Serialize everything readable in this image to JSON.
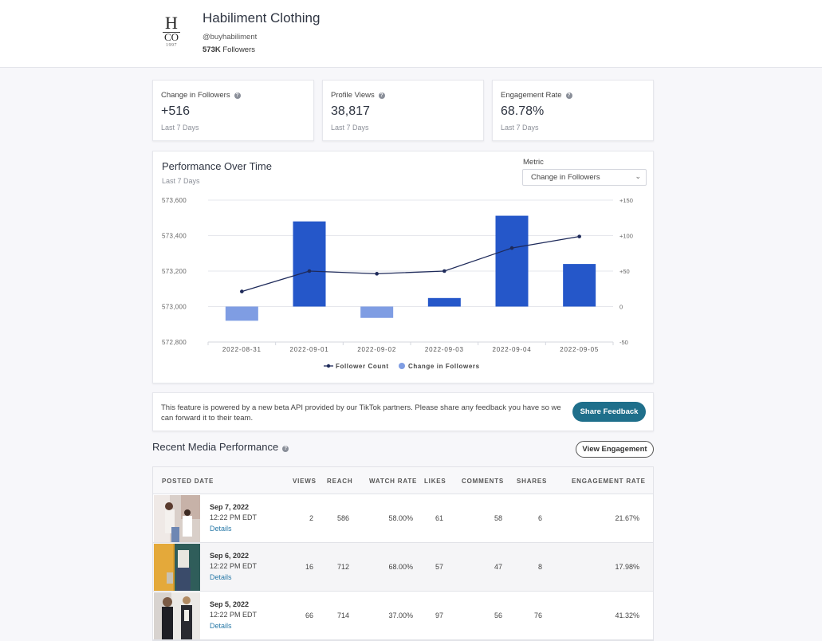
{
  "profile": {
    "logo": {
      "line1": "H",
      "line2": "CO",
      "line3": "1997"
    },
    "name": "Habiliment Clothing",
    "handle": "@buyhabiliment",
    "followers_count": "573K",
    "followers_label": "Followers"
  },
  "stats": [
    {
      "title": "Change in Followers",
      "value": "+516",
      "period": "Last 7 Days"
    },
    {
      "title": "Profile Views",
      "value": "38,817",
      "period": "Last 7 Days"
    },
    {
      "title": "Engagement Rate",
      "value": "68.78%",
      "period": "Last 7 Days"
    }
  ],
  "performance": {
    "title": "Performance Over Time",
    "period": "Last 7 Days",
    "metric_label": "Metric",
    "metric_selected": "Change in Followers"
  },
  "chart_data": {
    "type": "bar",
    "title": "Performance Over Time",
    "categories": [
      "2022-08-31",
      "2022-09-01",
      "2022-09-02",
      "2022-09-03",
      "2022-09-04",
      "2022-09-05"
    ],
    "series": [
      {
        "name": "Change in Followers",
        "type": "bar",
        "axis": "right",
        "values": [
          -20,
          120,
          -16,
          12,
          128,
          60
        ],
        "color": "#2557c9",
        "negative_color": "#7f9de3"
      },
      {
        "name": "Follower Count",
        "type": "line",
        "axis": "left",
        "values": [
          573085,
          573200,
          573185,
          573200,
          573330,
          573395
        ],
        "color": "#1e2a5a"
      }
    ],
    "y_left": {
      "min": 572800,
      "max": 573600,
      "ticks": [
        "572,800",
        "573,000",
        "573,200",
        "573,400",
        "573,600"
      ]
    },
    "y_right": {
      "min": -50,
      "max": 150,
      "ticks": [
        "-50",
        "0",
        "+50",
        "+100",
        "+150"
      ]
    },
    "grid": true,
    "legend_position": "bottom"
  },
  "feedback": {
    "text": "This feature is powered by a new beta API provided by our TikTok partners. Please share any feedback you have so we can forward it to their team.",
    "button": "Share Feedback"
  },
  "media": {
    "title": "Recent Media Performance",
    "button": "View Engagement",
    "columns": [
      "POSTED DATE",
      "VIEWS",
      "REACH",
      "WATCH RATE",
      "LIKES",
      "COMMENTS",
      "SHARES",
      "ENGAGEMENT RATE"
    ],
    "rows": [
      {
        "date": "Sep 7, 2022",
        "time": "12:22 PM EDT",
        "details": "Details",
        "views": "2",
        "reach": "586",
        "watch_rate": "58.00%",
        "likes": "61",
        "comments": "58",
        "shares": "6",
        "engagement": "21.67%"
      },
      {
        "date": "Sep 6, 2022",
        "time": "12:22 PM EDT",
        "details": "Details",
        "views": "16",
        "reach": "712",
        "watch_rate": "68.00%",
        "likes": "57",
        "comments": "47",
        "shares": "8",
        "engagement": "17.98%"
      },
      {
        "date": "Sep 5, 2022",
        "time": "12:22 PM EDT",
        "details": "Details",
        "views": "66",
        "reach": "714",
        "watch_rate": "37.00%",
        "likes": "97",
        "comments": "56",
        "shares": "76",
        "engagement": "41.32%"
      }
    ]
  }
}
